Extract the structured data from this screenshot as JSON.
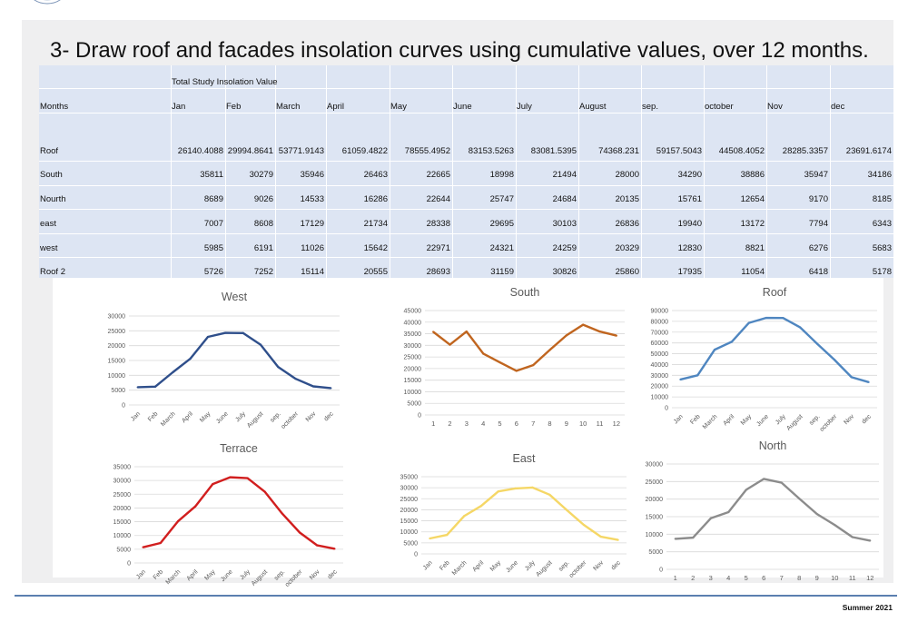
{
  "title": "3- Draw roof and facades insolation curves using cumulative values, over 12 months.",
  "footer": "Summer 2021",
  "table": {
    "group_header": "Total Study Insolation Value",
    "months_label": "Months",
    "months": [
      "Jan",
      "Feb",
      "March",
      "April",
      "May",
      "June",
      "July",
      "August",
      "sep.",
      "october",
      "Nov",
      "dec"
    ],
    "rows": [
      {
        "label": "Roof",
        "values": [
          "26140.4088",
          "29994.8641",
          "53771.9143",
          "61059.4822",
          "78555.4952",
          "83153.5263",
          "83081.5395",
          "74368.231",
          "59157.5043",
          "44508.4052",
          "28285.3357",
          "23691.6174"
        ]
      },
      {
        "label": "South",
        "values": [
          "35811",
          "30279",
          "35946",
          "26463",
          "22665",
          "18998",
          "21494",
          "28000",
          "34290",
          "38886",
          "35947",
          "34186"
        ]
      },
      {
        "label": "Nourth",
        "values": [
          "8689",
          "9026",
          "14533",
          "16286",
          "22644",
          "25747",
          "24684",
          "20135",
          "15761",
          "12654",
          "9170",
          "8185"
        ]
      },
      {
        "label": "east",
        "values": [
          "7007",
          "8608",
          "17129",
          "21734",
          "28338",
          "29695",
          "30103",
          "26836",
          "19940",
          "13172",
          "7794",
          "6343"
        ]
      },
      {
        "label": "west",
        "values": [
          "5985",
          "6191",
          "11026",
          "15642",
          "22971",
          "24321",
          "24259",
          "20329",
          "12830",
          "8821",
          "6276",
          "5683"
        ]
      },
      {
        "label": "Roof 2",
        "values": [
          "5726",
          "7252",
          "15114",
          "20555",
          "28693",
          "31159",
          "30826",
          "25860",
          "17935",
          "11054",
          "6418",
          "5178"
        ]
      }
    ]
  },
  "chart_data": [
    {
      "id": "west",
      "type": "line",
      "title": "West",
      "color": "#2f4f8b",
      "categories": [
        "Jan",
        "Feb",
        "March",
        "April",
        "May",
        "June",
        "July",
        "August",
        "sep.",
        "october",
        "Nov",
        "dec"
      ],
      "values": [
        5985,
        6191,
        11026,
        15642,
        22971,
        24321,
        24259,
        20329,
        12830,
        8821,
        6276,
        5683
      ],
      "ylim": [
        0,
        30000
      ],
      "yticks": [
        "0",
        "5000",
        "10000",
        "15000",
        "20000",
        "25000",
        "30000"
      ],
      "grid": true
    },
    {
      "id": "south",
      "type": "line",
      "title": "South",
      "color": "#c0651f",
      "categories": [
        "1",
        "2",
        "3",
        "4",
        "5",
        "6",
        "7",
        "8",
        "9",
        "10",
        "11",
        "12"
      ],
      "values": [
        35811,
        30279,
        35946,
        26463,
        22665,
        18998,
        21494,
        28000,
        34290,
        38886,
        35947,
        34186
      ],
      "ylim": [
        0,
        45000
      ],
      "yticks": [
        "0",
        "5000",
        "10000",
        "15000",
        "20000",
        "25000",
        "30000",
        "35000",
        "40000",
        "45000"
      ],
      "grid": true
    },
    {
      "id": "roof",
      "type": "line",
      "title": "Roof",
      "color": "#4f86c0",
      "categories": [
        "Jan",
        "Feb",
        "March",
        "April",
        "May",
        "June",
        "July",
        "August",
        "sep.",
        "october",
        "Nov",
        "dec"
      ],
      "values": [
        26140.4088,
        29994.8641,
        53771.9143,
        61059.4822,
        78555.4952,
        83153.5263,
        83081.5395,
        74368.231,
        59157.5043,
        44508.4052,
        28285.3357,
        23691.6174
      ],
      "ylim": [
        0,
        90000
      ],
      "yticks": [
        "0",
        "10000",
        "20000",
        "30000",
        "40000",
        "50000",
        "60000",
        "70000",
        "80000",
        "90000"
      ],
      "grid": true
    },
    {
      "id": "terrace",
      "type": "line",
      "title": "Terrace",
      "color": "#d11e1e",
      "categories": [
        "Jan",
        "Feb",
        "March",
        "April",
        "May",
        "June",
        "July",
        "August",
        "sep.",
        "october",
        "Nov",
        "dec"
      ],
      "values": [
        5726,
        7252,
        15114,
        20555,
        28693,
        31159,
        30826,
        25860,
        17935,
        11054,
        6418,
        5178
      ],
      "ylim": [
        0,
        35000
      ],
      "yticks": [
        "0",
        "5000",
        "10000",
        "15000",
        "20000",
        "25000",
        "30000",
        "35000"
      ],
      "grid": true
    },
    {
      "id": "east",
      "type": "line",
      "title": "East",
      "color": "#f5d766",
      "categories": [
        "Jan",
        "Feb",
        "March",
        "April",
        "May",
        "June",
        "July",
        "August",
        "sep.",
        "october",
        "Nov",
        "dec"
      ],
      "values": [
        7007,
        8608,
        17129,
        21734,
        28338,
        29695,
        30103,
        26836,
        19940,
        13172,
        7794,
        6343
      ],
      "ylim": [
        0,
        35000
      ],
      "yticks": [
        "0",
        "5000",
        "10000",
        "15000",
        "20000",
        "25000",
        "30000",
        "35000"
      ],
      "grid": true
    },
    {
      "id": "north",
      "type": "line",
      "title": "North",
      "color": "#8c8c8c",
      "categories": [
        "1",
        "2",
        "3",
        "4",
        "5",
        "6",
        "7",
        "8",
        "9",
        "10",
        "11",
        "12"
      ],
      "values": [
        8689,
        9026,
        14533,
        16286,
        22644,
        25747,
        24684,
        20135,
        15761,
        12654,
        9170,
        8185
      ],
      "ylim": [
        0,
        30000
      ],
      "yticks": [
        "0",
        "5000",
        "10000",
        "15000",
        "20000",
        "25000",
        "30000"
      ],
      "grid": true
    }
  ]
}
